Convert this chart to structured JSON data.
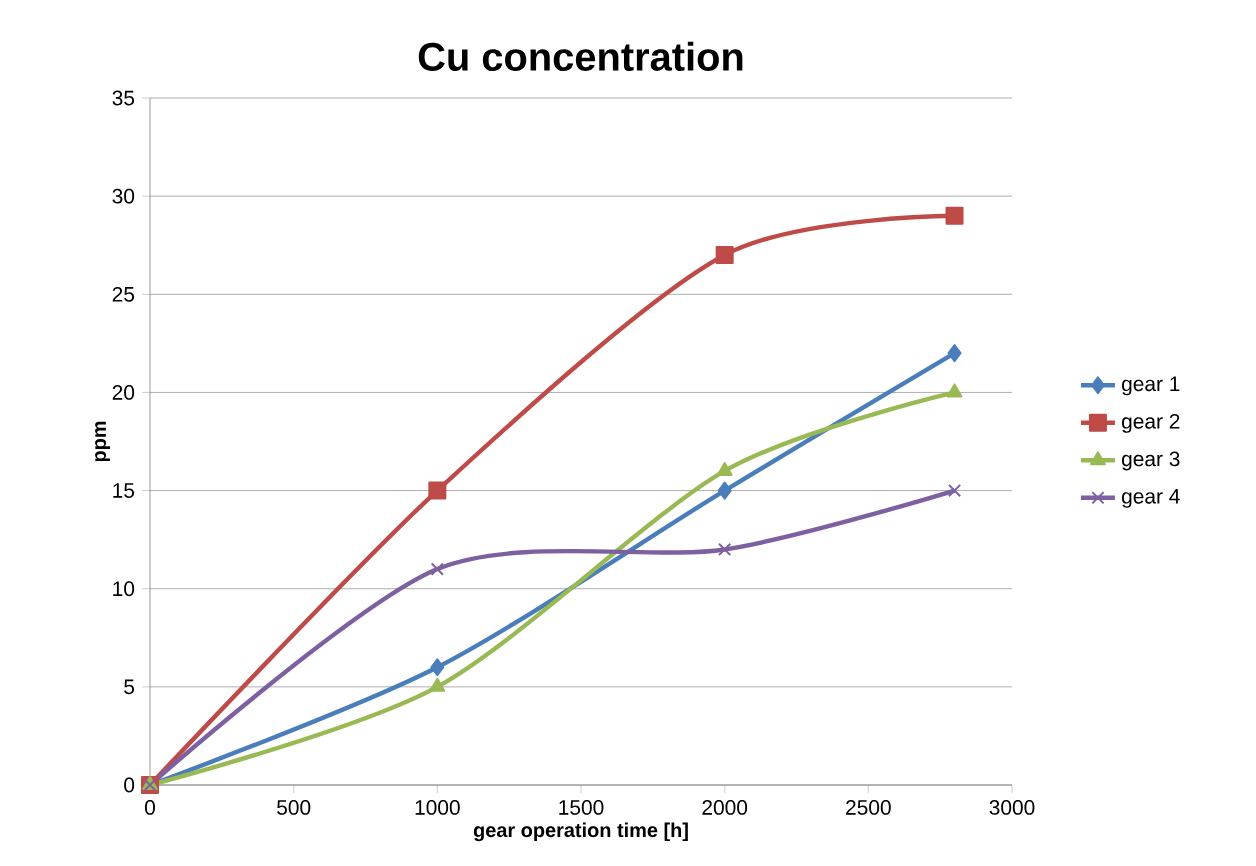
{
  "chart_data": {
    "type": "line",
    "title": "Cu concentration",
    "xlabel": "gear operation time  [h]",
    "ylabel": "ppm",
    "x": [
      0,
      1000,
      2000,
      2800
    ],
    "series": [
      {
        "name": "gear 1",
        "color": "#4a7ebb",
        "marker": "diamond",
        "values": [
          0,
          6,
          15,
          22
        ]
      },
      {
        "name": "gear 2",
        "color": "#be4b48",
        "marker": "square",
        "values": [
          0,
          15,
          27,
          29
        ]
      },
      {
        "name": "gear 3",
        "color": "#98b954",
        "marker": "triangle",
        "values": [
          0,
          5,
          16,
          20
        ]
      },
      {
        "name": "gear 4",
        "color": "#7d60a0",
        "marker": "cross",
        "values": [
          0,
          11,
          12,
          15
        ]
      }
    ],
    "xlim": [
      0,
      3000
    ],
    "xticks": [
      0,
      500,
      1000,
      1500,
      2000,
      2500,
      3000
    ],
    "ylim": [
      0,
      35
    ],
    "yticks": [
      0,
      5,
      10,
      15,
      20,
      25,
      30,
      35
    ],
    "grid": "y",
    "legend": "right",
    "line_style": "solid"
  }
}
